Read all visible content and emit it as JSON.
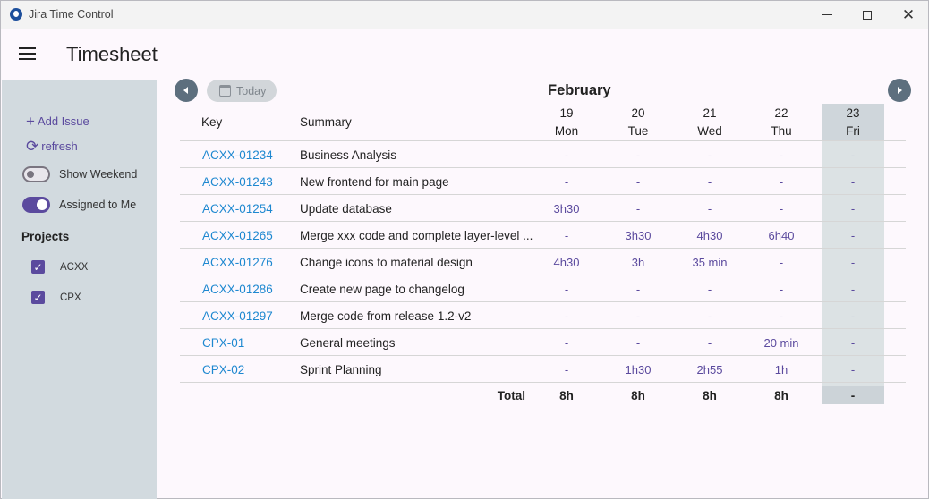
{
  "window": {
    "title": "Jira Time Control"
  },
  "header": {
    "title": "Timesheet"
  },
  "sidebar": {
    "add_issue": "Add Issue",
    "refresh": "refresh",
    "show_weekend": {
      "label": "Show Weekend",
      "on": false
    },
    "assigned_to_me": {
      "label": "Assigned to Me",
      "on": true
    },
    "projects_title": "Projects",
    "projects": [
      {
        "label": "ACXX",
        "checked": true
      },
      {
        "label": "CPX",
        "checked": true
      }
    ]
  },
  "nav": {
    "today_label": "Today",
    "month": "February"
  },
  "table": {
    "col_key": "Key",
    "col_summary": "Summary",
    "days": [
      {
        "date": "19",
        "weekday": "Mon"
      },
      {
        "date": "20",
        "weekday": "Tue"
      },
      {
        "date": "21",
        "weekday": "Wed"
      },
      {
        "date": "22",
        "weekday": "Thu"
      },
      {
        "date": "23",
        "weekday": "Fri"
      }
    ],
    "rows": [
      {
        "key": "ACXX-01234",
        "summary": "Business Analysis",
        "values": [
          "-",
          "-",
          "-",
          "-",
          "-"
        ]
      },
      {
        "key": "ACXX-01243",
        "summary": "New frontend for main page",
        "values": [
          "-",
          "-",
          "-",
          "-",
          "-"
        ]
      },
      {
        "key": "ACXX-01254",
        "summary": "Update database",
        "values": [
          "3h30",
          "-",
          "-",
          "-",
          "-"
        ]
      },
      {
        "key": "ACXX-01265",
        "summary": "Merge xxx code and complete layer-level ...",
        "values": [
          "-",
          "3h30",
          "4h30",
          "6h40",
          "-"
        ]
      },
      {
        "key": "ACXX-01276",
        "summary": "Change icons to material design",
        "values": [
          "4h30",
          "3h",
          "35 min",
          "-",
          "-"
        ]
      },
      {
        "key": "ACXX-01286",
        "summary": "Create new page to changelog",
        "values": [
          "-",
          "-",
          "-",
          "-",
          "-"
        ]
      },
      {
        "key": "ACXX-01297",
        "summary": "Merge code from release 1.2-v2",
        "values": [
          "-",
          "-",
          "-",
          "-",
          "-"
        ]
      },
      {
        "key": "CPX-01",
        "summary": "General meetings",
        "values": [
          "-",
          "-",
          "-",
          "20 min",
          "-"
        ]
      },
      {
        "key": "CPX-02",
        "summary": "Sprint Planning",
        "values": [
          "-",
          "1h30",
          "2h55",
          "1h",
          "-"
        ]
      }
    ],
    "total_label": "Total",
    "totals": [
      "8h",
      "8h",
      "8h",
      "8h",
      "-"
    ]
  }
}
